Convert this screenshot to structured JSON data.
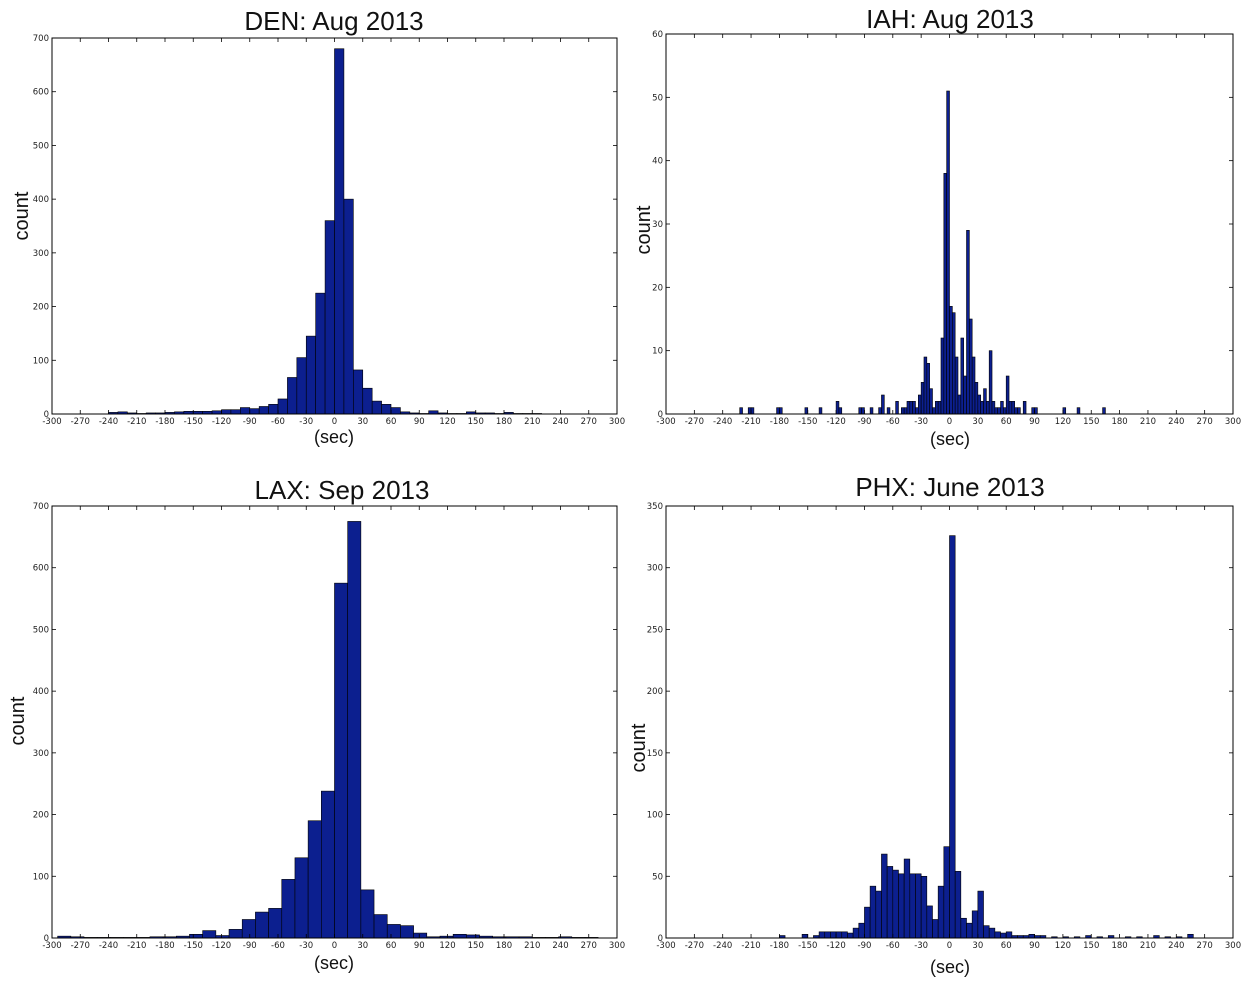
{
  "colors": {
    "bar_fill": "#0c1f8f",
    "bar_edge": "#000000",
    "frame": "#000000"
  },
  "chart_data": [
    {
      "type": "bar",
      "title": "DEN: Aug 2013",
      "xlabel": "(sec)",
      "ylabel": "count",
      "xlim": [
        -300,
        300
      ],
      "ylim": [
        0,
        700
      ],
      "xticks": [
        -300,
        -270,
        -240,
        -210,
        -180,
        -150,
        -120,
        -90,
        -60,
        -30,
        0,
        30,
        60,
        90,
        120,
        150,
        180,
        210,
        240,
        270,
        300
      ],
      "yticks": [
        0,
        100,
        200,
        300,
        400,
        500,
        600,
        700
      ],
      "bin_width": 10,
      "bin_starts": [
        -240,
        -230,
        -220,
        -210,
        -200,
        -190,
        -180,
        -170,
        -160,
        -150,
        -140,
        -130,
        -120,
        -110,
        -100,
        -90,
        -80,
        -70,
        -60,
        -50,
        -40,
        -30,
        -20,
        -10,
        0,
        10,
        20,
        30,
        40,
        50,
        60,
        70,
        80,
        90,
        100,
        110,
        120,
        130,
        140,
        150,
        160,
        170,
        180,
        190,
        200,
        210
      ],
      "values": [
        3,
        4,
        2,
        1,
        2,
        2,
        3,
        4,
        5,
        5,
        5,
        6,
        8,
        8,
        12,
        10,
        14,
        18,
        28,
        68,
        105,
        145,
        225,
        360,
        680,
        400,
        82,
        48,
        24,
        18,
        12,
        4,
        2,
        1,
        6,
        2,
        1,
        1,
        4,
        2,
        2,
        1,
        3,
        1,
        1,
        1
      ]
    },
    {
      "type": "bar",
      "title": "IAH: Aug 2013",
      "xlabel": "(sec)",
      "ylabel": "count",
      "xlim": [
        -300,
        300
      ],
      "ylim": [
        0,
        60
      ],
      "xticks": [
        -300,
        -270,
        -240,
        -210,
        -180,
        -150,
        -120,
        -90,
        -60,
        -30,
        0,
        30,
        60,
        90,
        120,
        150,
        180,
        210,
        240,
        270,
        300
      ],
      "yticks": [
        0,
        10,
        20,
        30,
        40,
        50,
        60
      ],
      "bin_width": 3,
      "bin_starts": [
        -222,
        -213,
        -210,
        -183,
        -180,
        -153,
        -138,
        -120,
        -117,
        -96,
        -93,
        -84,
        -75,
        -72,
        -66,
        -57,
        -51,
        -48,
        -45,
        -42,
        -39,
        -36,
        -33,
        -30,
        -27,
        -24,
        -21,
        -18,
        -15,
        -12,
        -9,
        -6,
        -3,
        0,
        3,
        6,
        9,
        12,
        15,
        18,
        21,
        24,
        27,
        30,
        33,
        36,
        39,
        42,
        45,
        48,
        51,
        54,
        57,
        60,
        63,
        66,
        69,
        72,
        78,
        87,
        90,
        120,
        135,
        162
      ],
      "values": [
        1,
        1,
        1,
        1,
        1,
        1,
        1,
        2,
        1,
        1,
        1,
        1,
        1,
        3,
        1,
        2,
        1,
        1,
        2,
        2,
        2,
        1,
        3,
        5,
        9,
        8,
        4,
        1,
        2,
        2,
        12,
        38,
        51,
        17,
        16,
        9,
        3,
        12,
        6,
        29,
        15,
        9,
        5,
        3,
        2,
        4,
        2,
        10,
        2,
        1,
        1,
        2,
        1,
        6,
        2,
        2,
        1,
        1,
        2,
        1,
        1,
        1,
        1,
        1
      ]
    },
    {
      "type": "bar",
      "title": "LAX: Sep 2013",
      "xlabel": "(sec)",
      "ylabel": "count",
      "xlim": [
        -300,
        300
      ],
      "ylim": [
        0,
        700
      ],
      "xticks": [
        -300,
        -270,
        -240,
        -210,
        -180,
        -150,
        -120,
        -90,
        -60,
        -30,
        0,
        30,
        60,
        90,
        120,
        150,
        180,
        210,
        240,
        270,
        300
      ],
      "yticks": [
        0,
        100,
        200,
        300,
        400,
        500,
        600,
        700
      ],
      "bin_width": 14,
      "bin_starts": [
        -294,
        -280,
        -266,
        -252,
        -238,
        -224,
        -210,
        -196,
        -182,
        -168,
        -154,
        -140,
        -126,
        -112,
        -98,
        -84,
        -70,
        -56,
        -42,
        -28,
        -14,
        0,
        14,
        28,
        42,
        56,
        70,
        84,
        98,
        112,
        126,
        140,
        154,
        168,
        182,
        196,
        210,
        224,
        238,
        252,
        266
      ],
      "values": [
        3,
        2,
        1,
        1,
        1,
        1,
        1,
        2,
        2,
        3,
        6,
        12,
        4,
        14,
        30,
        42,
        48,
        95,
        130,
        190,
        238,
        575,
        675,
        78,
        38,
        22,
        20,
        8,
        2,
        3,
        6,
        5,
        3,
        2,
        2,
        2,
        1,
        1,
        2,
        1,
        1
      ]
    },
    {
      "type": "bar",
      "title": "PHX: June 2013",
      "xlabel": "(sec)",
      "ylabel": "count",
      "xlim": [
        -300,
        300
      ],
      "ylim": [
        0,
        350
      ],
      "xticks": [
        -300,
        -270,
        -240,
        -210,
        -180,
        -150,
        -120,
        -90,
        -60,
        -30,
        0,
        30,
        60,
        90,
        120,
        150,
        180,
        210,
        240,
        270,
        300
      ],
      "yticks": [
        0,
        50,
        100,
        150,
        200,
        250,
        300,
        350
      ],
      "bin_width": 6,
      "bin_starts": [
        -180,
        -156,
        -144,
        -138,
        -132,
        -126,
        -120,
        -114,
        -108,
        -102,
        -96,
        -90,
        -84,
        -78,
        -72,
        -66,
        -60,
        -54,
        -48,
        -42,
        -36,
        -30,
        -24,
        -18,
        -12,
        -6,
        0,
        6,
        12,
        18,
        24,
        30,
        36,
        42,
        48,
        54,
        60,
        66,
        72,
        78,
        84,
        90,
        96,
        108,
        120,
        132,
        144,
        156,
        168,
        186,
        198,
        216,
        228,
        240,
        252
      ],
      "values": [
        2,
        3,
        2,
        5,
        5,
        5,
        5,
        5,
        4,
        8,
        12,
        25,
        42,
        38,
        68,
        58,
        55,
        52,
        64,
        52,
        52,
        50,
        26,
        15,
        42,
        74,
        326,
        54,
        16,
        12,
        22,
        38,
        10,
        8,
        5,
        4,
        5,
        2,
        2,
        2,
        3,
        2,
        2,
        1,
        1,
        1,
        2,
        1,
        2,
        1,
        1,
        2,
        1,
        1,
        3
      ]
    }
  ]
}
